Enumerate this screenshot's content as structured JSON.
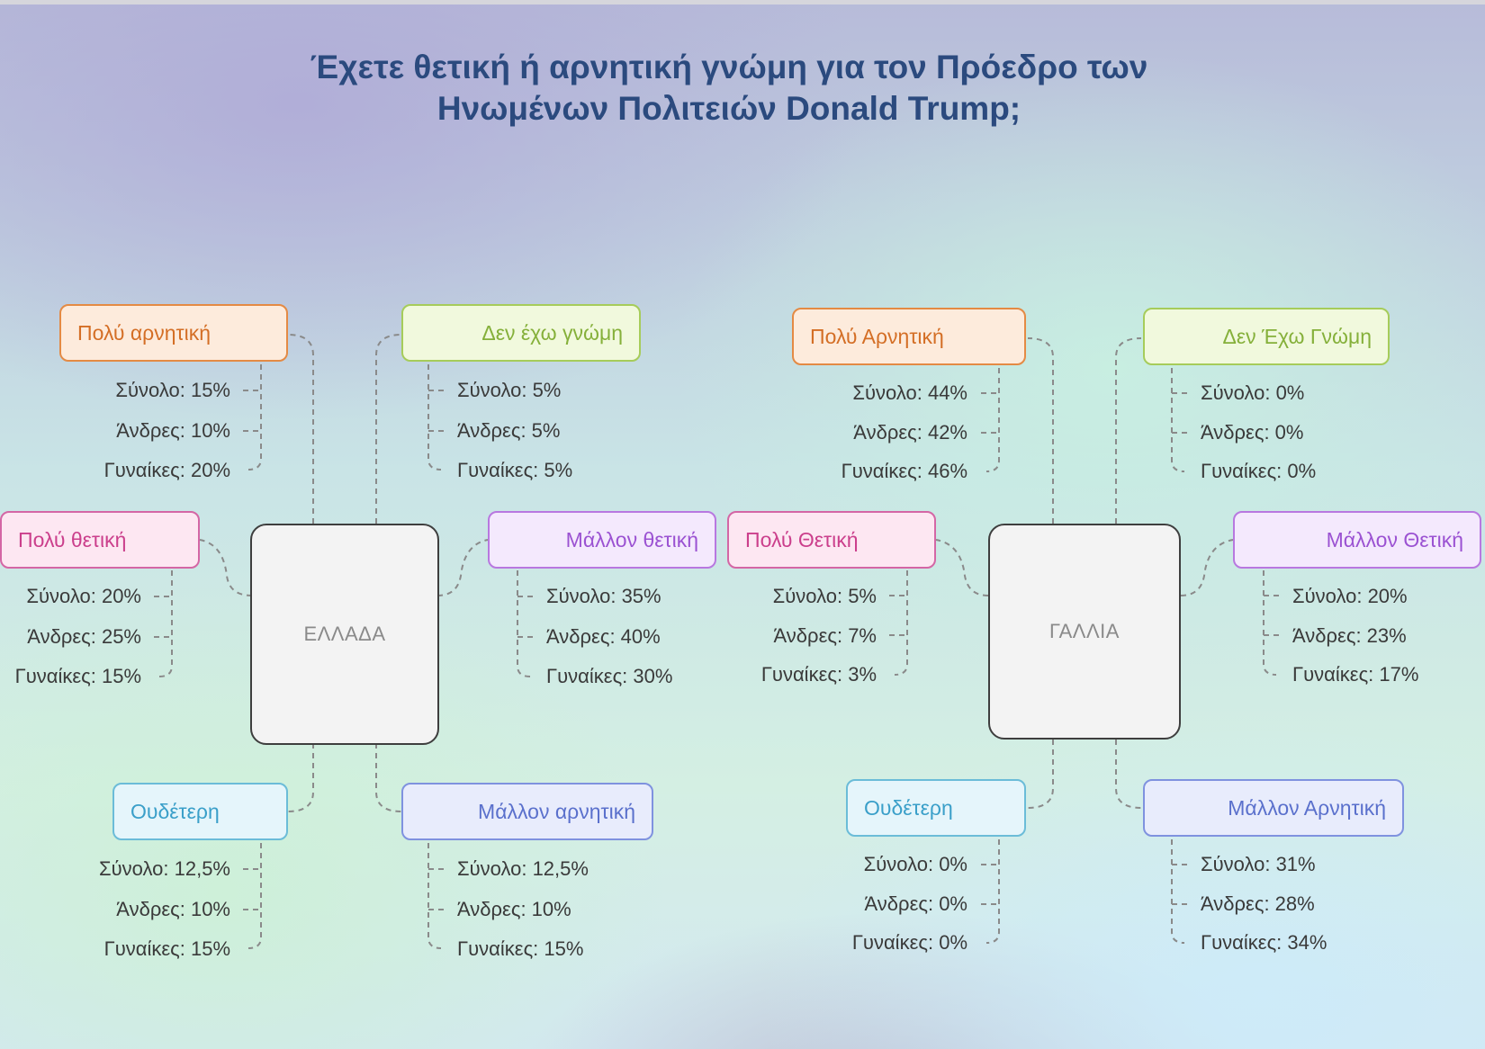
{
  "title_lines": [
    "Έχετε θετική ή αρνητική γνώμη για τον Πρόεδρο των",
    "Ηνωμένων Πολιτειών Donald Trump;"
  ],
  "colors": {
    "orange": "#e48a44",
    "green": "#a6cc5a",
    "pink": "#d466a5",
    "purple": "#b878e0",
    "cyan": "#6bbcd8",
    "blue": "#7f92df",
    "title": "#2b4a7e",
    "connector": "#8a8a8a"
  },
  "groups": [
    {
      "center": "ΕΛΛΑΔΑ",
      "categories": [
        {
          "label": "Πολύ αρνητική",
          "color": "orange",
          "stats": [
            "Σύνολο: 15%",
            "Άνδρες: 10%",
            "Γυναίκες: 20%"
          ]
        },
        {
          "label": "Δεν έχω γνώμη",
          "color": "green",
          "stats": [
            "Σύνολο: 5%",
            "Άνδρες: 5%",
            "Γυναίκες: 5%"
          ]
        },
        {
          "label": "Πολύ θετική",
          "color": "pink",
          "stats": [
            "Σύνολο: 20%",
            "Άνδρες: 25%",
            "Γυναίκες: 15%"
          ]
        },
        {
          "label": "Μάλλον θετική",
          "color": "purple",
          "stats": [
            "Σύνολο: 35%",
            "Άνδρες: 40%",
            "Γυναίκες: 30%"
          ]
        },
        {
          "label": "Ουδέτερη",
          "color": "cyan",
          "stats": [
            "Σύνολο: 12,5%",
            "Άνδρες: 10%",
            "Γυναίκες: 15%"
          ]
        },
        {
          "label": "Μάλλον αρνητική",
          "color": "blue",
          "stats": [
            "Σύνολο: 12,5%",
            "Άνδρες: 10%",
            "Γυναίκες: 15%"
          ]
        }
      ]
    },
    {
      "center": "ΓΑΛΛΙΑ",
      "categories": [
        {
          "label": "Πολύ Αρνητική",
          "color": "orange",
          "stats": [
            "Σύνολο: 44%",
            "Άνδρες: 42%",
            "Γυναίκες: 46%"
          ]
        },
        {
          "label": "Δεν Έχω Γνώμη",
          "color": "green",
          "stats": [
            "Σύνολο: 0%",
            "Άνδρες: 0%",
            "Γυναίκες: 0%"
          ]
        },
        {
          "label": "Πολύ Θετική",
          "color": "pink",
          "stats": [
            "Σύνολο: 5%",
            "Άνδρες: 7%",
            "Γυναίκες: 3%"
          ]
        },
        {
          "label": "Μάλλον Θετική",
          "color": "purple",
          "stats": [
            "Σύνολο: 20%",
            "Άνδρες: 23%",
            "Γυναίκες: 17%"
          ]
        },
        {
          "label": "Ουδέτερη",
          "color": "cyan",
          "stats": [
            "Σύνολο: 0%",
            "Άνδρες: 0%",
            "Γυναίκες: 0%"
          ]
        },
        {
          "label": "Μάλλον Αρνητική",
          "color": "blue",
          "stats": [
            "Σύνολο: 31%",
            "Άνδρες: 28%",
            "Γυναίκες: 34%"
          ]
        }
      ]
    }
  ]
}
